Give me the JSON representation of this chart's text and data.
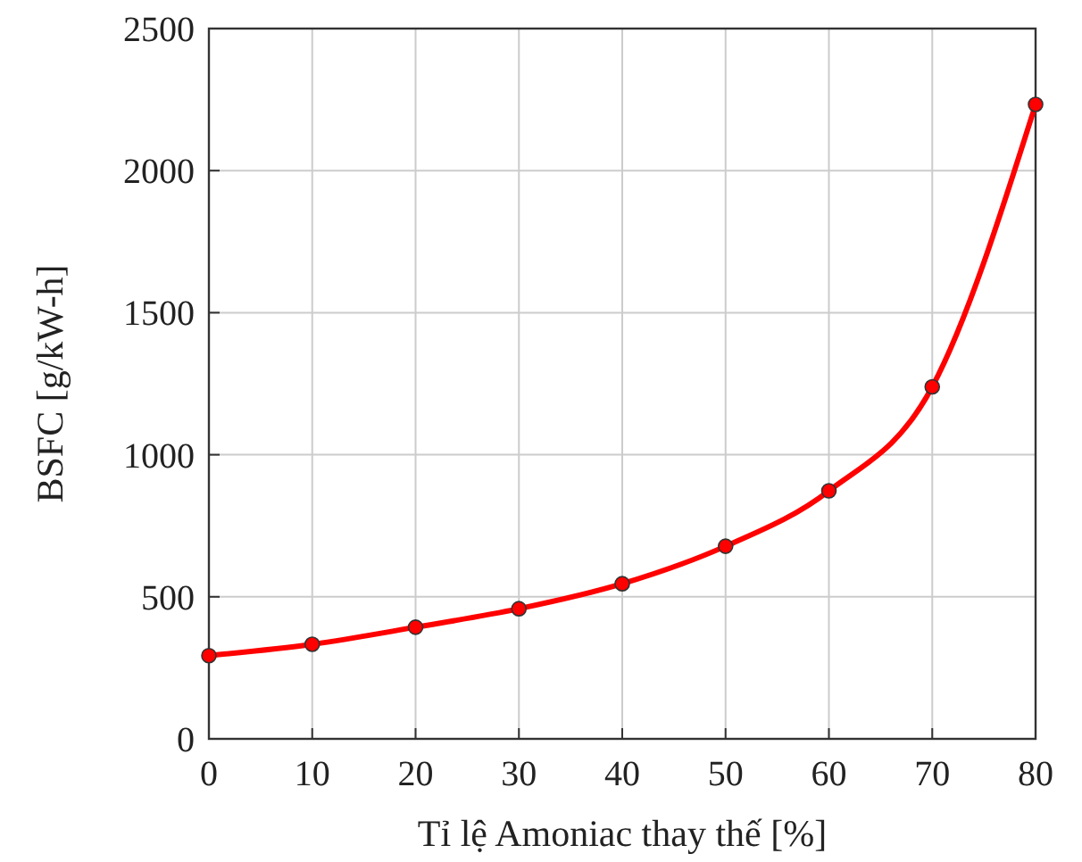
{
  "chart_data": {
    "type": "line",
    "xlabel": "Tỉ lệ Amoniac thay thế [%]",
    "ylabel": "BSFC [g/kW-h]",
    "x": [
      0,
      10,
      20,
      30,
      40,
      50,
      60,
      70,
      80
    ],
    "series": [
      {
        "color": "#ff0000",
        "values": [
          293,
          333,
          393,
          458,
          546,
          678,
          873,
          1239,
          2233
        ]
      }
    ],
    "xlim": [
      0,
      80
    ],
    "xticks": [
      0,
      10,
      20,
      30,
      40,
      50,
      60,
      70,
      80
    ],
    "ylim": [
      0,
      2500
    ],
    "yticks": [
      0,
      500,
      1000,
      1500,
      2000,
      2500
    ],
    "grid": true,
    "marker": "circle",
    "line_style": "solid"
  }
}
